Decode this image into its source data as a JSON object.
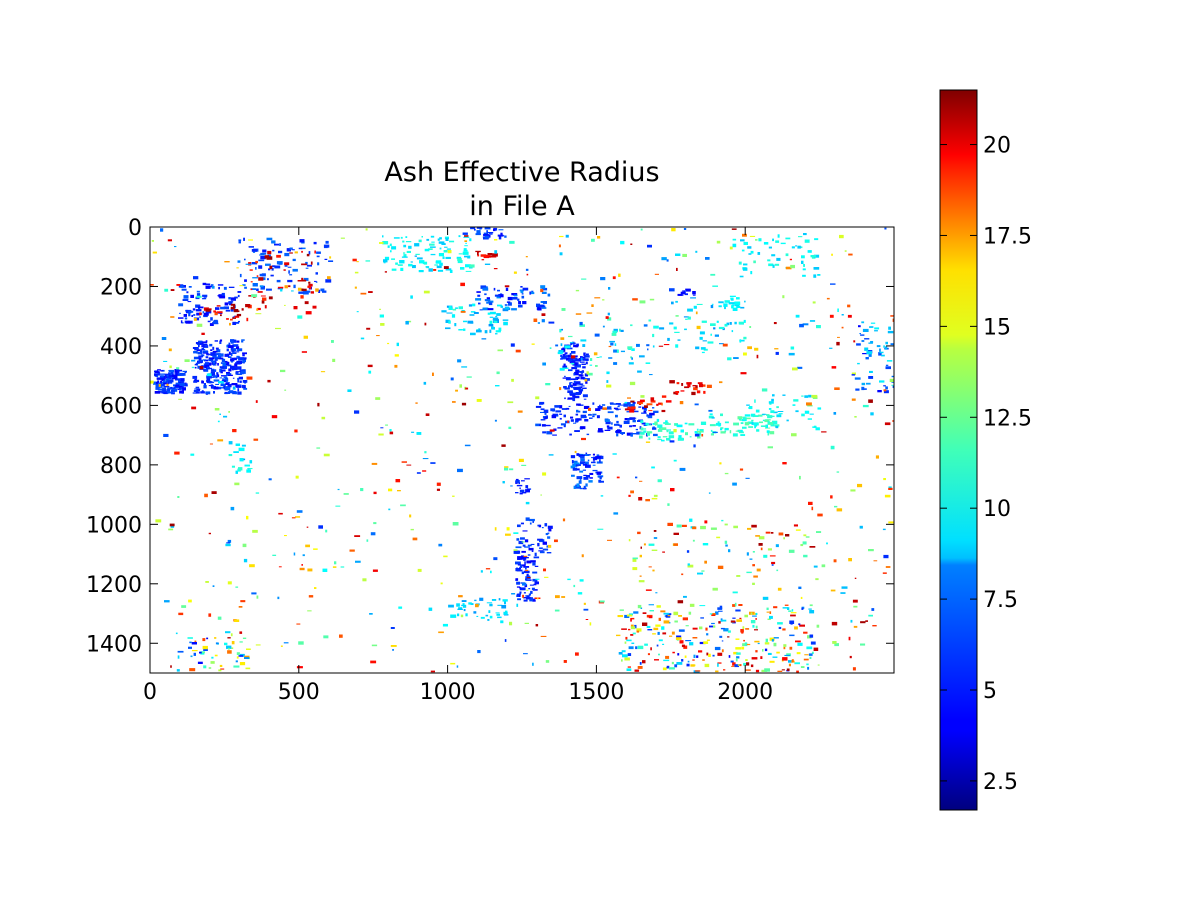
{
  "chart_data": {
    "type": "heatmap",
    "title_lines": [
      "Ash Effective Radius",
      "in File A"
    ],
    "x_range": [
      0,
      2500
    ],
    "y_range": [
      0,
      1500
    ],
    "y_inverted": true,
    "x_ticks": [
      {
        "value": 0,
        "label": "0"
      },
      {
        "value": 500,
        "label": "500"
      },
      {
        "value": 1000,
        "label": "1000"
      },
      {
        "value": 1500,
        "label": "1500"
      },
      {
        "value": 2000,
        "label": "2000"
      }
    ],
    "y_ticks": [
      {
        "value": 0,
        "label": "0"
      },
      {
        "value": 200,
        "label": "200"
      },
      {
        "value": 400,
        "label": "400"
      },
      {
        "value": 600,
        "label": "600"
      },
      {
        "value": 800,
        "label": "800"
      },
      {
        "value": 1000,
        "label": "1000"
      },
      {
        "value": 1200,
        "label": "1200"
      },
      {
        "value": 1400,
        "label": "1400"
      }
    ],
    "grid": false,
    "colorbar": {
      "colormap": "jet",
      "range": [
        1.7,
        21.5
      ],
      "placement": "right",
      "ticks": [
        {
          "value": 2.5,
          "label": "2.5"
        },
        {
          "value": 5,
          "label": "5"
        },
        {
          "value": 7.5,
          "label": "7.5"
        },
        {
          "value": 10,
          "label": "10"
        },
        {
          "value": 12.5,
          "label": "12.5"
        },
        {
          "value": 15,
          "label": "15"
        },
        {
          "value": 17.5,
          "label": "17.5"
        },
        {
          "value": 20,
          "label": "20"
        }
      ]
    },
    "clusters": [
      {
        "x": [
          150,
          320
        ],
        "y": [
          380,
          560
        ],
        "value": [
          4,
          6
        ],
        "count": 260,
        "spread": 1.0
      },
      {
        "x": [
          20,
          120
        ],
        "y": [
          480,
          560
        ],
        "value": [
          4,
          6
        ],
        "count": 120,
        "spread": 1.0
      },
      {
        "x": [
          100,
          300
        ],
        "y": [
          190,
          330
        ],
        "value": [
          4,
          6
        ],
        "count": 90,
        "spread": 1.0
      },
      {
        "x": [
          300,
          600
        ],
        "y": [
          40,
          230
        ],
        "value": [
          4.5,
          6.5
        ],
        "count": 90,
        "spread": 1.0
      },
      {
        "x": [
          330,
          560
        ],
        "y": [
          80,
          290
        ],
        "value": [
          18,
          21
        ],
        "count": 45,
        "spread": 1.0
      },
      {
        "x": [
          180,
          340
        ],
        "y": [
          260,
          320
        ],
        "value": [
          18,
          21
        ],
        "count": 20,
        "spread": 1.0
      },
      {
        "x": [
          780,
          1080
        ],
        "y": [
          30,
          150
        ],
        "value": [
          8,
          10
        ],
        "count": 90,
        "spread": 1.0
      },
      {
        "x": [
          1050,
          1200
        ],
        "y": [
          0,
          40
        ],
        "value": [
          4,
          6
        ],
        "count": 25,
        "spread": 1.0
      },
      {
        "x": [
          1080,
          1180
        ],
        "y": [
          80,
          110
        ],
        "value": [
          18,
          21
        ],
        "count": 12,
        "spread": 1.0
      },
      {
        "x": [
          1100,
          1330
        ],
        "y": [
          200,
          280
        ],
        "value": [
          4,
          7
        ],
        "count": 60,
        "spread": 1.0
      },
      {
        "x": [
          1000,
          1200
        ],
        "y": [
          260,
          360
        ],
        "value": [
          7,
          10
        ],
        "count": 50,
        "spread": 1.0
      },
      {
        "x": [
          1390,
          1470
        ],
        "y": [
          420,
          580
        ],
        "value": [
          4,
          5.5
        ],
        "count": 90,
        "spread": 1.0
      },
      {
        "x": [
          1380,
          1440
        ],
        "y": [
          390,
          450
        ],
        "value": [
          4,
          5.5
        ],
        "count": 30,
        "spread": 1.0
      },
      {
        "x": [
          1300,
          1700
        ],
        "y": [
          590,
          700
        ],
        "value": [
          4,
          6
        ],
        "count": 150,
        "spread": 1.0
      },
      {
        "x": [
          1420,
          1520
        ],
        "y": [
          760,
          880
        ],
        "value": [
          4,
          7
        ],
        "count": 70,
        "spread": 1.0
      },
      {
        "x": [
          1230,
          1280
        ],
        "y": [
          840,
          900
        ],
        "value": [
          4,
          5.5
        ],
        "count": 15,
        "spread": 1.0
      },
      {
        "x": [
          1600,
          1750
        ],
        "y": [
          570,
          620
        ],
        "value": [
          17,
          21
        ],
        "count": 20,
        "spread": 1.0
      },
      {
        "x": [
          1750,
          1880
        ],
        "y": [
          520,
          560
        ],
        "value": [
          17,
          21
        ],
        "count": 20,
        "spread": 1.0
      },
      {
        "x": [
          1630,
          1860
        ],
        "y": [
          650,
          720
        ],
        "value": [
          9,
          11
        ],
        "count": 50,
        "spread": 1.0
      },
      {
        "x": [
          1880,
          2110
        ],
        "y": [
          630,
          700
        ],
        "value": [
          9,
          11
        ],
        "count": 60,
        "spread": 1.0
      },
      {
        "x": [
          2000,
          2250
        ],
        "y": [
          560,
          680
        ],
        "value": [
          8,
          10
        ],
        "count": 40,
        "spread": 1.0
      },
      {
        "x": [
          1300,
          1700
        ],
        "y": [
          300,
          500
        ],
        "value": [
          6,
          11
        ],
        "count": 60,
        "spread": 1.0
      },
      {
        "x": [
          1700,
          2000
        ],
        "y": [
          250,
          450
        ],
        "value": [
          7,
          10
        ],
        "count": 50,
        "spread": 1.0
      },
      {
        "x": [
          1780,
          1830
        ],
        "y": [
          210,
          230
        ],
        "value": [
          4,
          5
        ],
        "count": 10,
        "spread": 1.0
      },
      {
        "x": [
          1960,
          2250
        ],
        "y": [
          30,
          180
        ],
        "value": [
          8,
          10
        ],
        "count": 50,
        "spread": 1.0
      },
      {
        "x": [
          1930,
          1980
        ],
        "y": [
          220,
          280
        ],
        "value": [
          8.5,
          9.5
        ],
        "count": 12,
        "spread": 1.0
      },
      {
        "x": [
          2380,
          2500
        ],
        "y": [
          320,
          560
        ],
        "value": [
          4,
          9
        ],
        "count": 50,
        "spread": 1.0
      },
      {
        "x": [
          1230,
          1300
        ],
        "y": [
          1100,
          1260
        ],
        "value": [
          4,
          5.5
        ],
        "count": 70,
        "spread": 1.0
      },
      {
        "x": [
          1230,
          1350
        ],
        "y": [
          980,
          1100
        ],
        "value": [
          4,
          6
        ],
        "count": 40,
        "spread": 1.0
      },
      {
        "x": [
          1000,
          1200
        ],
        "y": [
          1250,
          1330
        ],
        "value": [
          7,
          9
        ],
        "count": 40,
        "spread": 1.0
      },
      {
        "x": [
          1580,
          2230
        ],
        "y": [
          1270,
          1500
        ],
        "value": [
          4,
          21
        ],
        "count": 240,
        "spread": 1.0
      },
      {
        "x": [
          1600,
          2300
        ],
        "y": [
          1000,
          1180
        ],
        "value": [
          7,
          21
        ],
        "count": 70,
        "spread": 1.0
      },
      {
        "x": [
          120,
          340
        ],
        "y": [
          1380,
          1500
        ],
        "value": [
          4,
          20
        ],
        "count": 45,
        "spread": 1.0
      },
      {
        "x": [
          270,
          340
        ],
        "y": [
          720,
          840
        ],
        "value": [
          8,
          10
        ],
        "count": 15,
        "spread": 1.0
      },
      {
        "x": [
          0,
          2500
        ],
        "y": [
          0,
          1500
        ],
        "value": [
          5,
          21
        ],
        "count": 700,
        "spread": 1.0
      }
    ]
  }
}
